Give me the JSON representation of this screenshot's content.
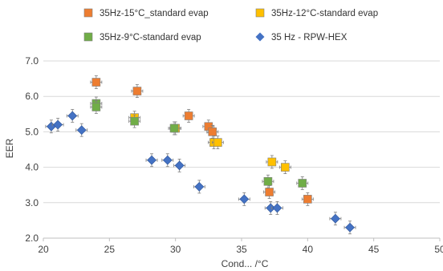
{
  "chart_data": {
    "type": "scatter",
    "title": "",
    "xlabel": "Cond... /°C",
    "ylabel": "EER",
    "xlim": [
      20,
      50
    ],
    "ylim": [
      2.0,
      7.0
    ],
    "x_ticks": [
      "20",
      "25",
      "30",
      "35",
      "40",
      "45",
      "50"
    ],
    "y_ticks": [
      "2.0",
      "3.0",
      "4.0",
      "5.0",
      "6.0",
      "7.0"
    ],
    "grid": "horizontal",
    "legend_position": "top",
    "series": [
      {
        "name": "35Hz-15°C_standard evap",
        "color": "#ED7D31",
        "marker": "square",
        "points": [
          {
            "x": 24.0,
            "y": 6.4
          },
          {
            "x": 27.1,
            "y": 6.15
          },
          {
            "x": 31.0,
            "y": 5.45
          },
          {
            "x": 32.5,
            "y": 5.15
          },
          {
            "x": 32.8,
            "y": 5.0
          },
          {
            "x": 37.1,
            "y": 3.3
          },
          {
            "x": 40.0,
            "y": 3.1
          }
        ]
      },
      {
        "name": "35Hz-12°C-standard evap",
        "color": "#FFC000",
        "marker": "square",
        "points": [
          {
            "x": 26.9,
            "y": 5.4
          },
          {
            "x": 30.0,
            "y": 5.1
          },
          {
            "x": 32.9,
            "y": 4.7
          },
          {
            "x": 33.2,
            "y": 4.7
          },
          {
            "x": 37.3,
            "y": 4.15
          },
          {
            "x": 38.3,
            "y": 4.0
          }
        ]
      },
      {
        "name": "35Hz-9°C-standard evap",
        "color": "#70AD47",
        "marker": "square",
        "points": [
          {
            "x": 24.0,
            "y": 5.8
          },
          {
            "x": 24.0,
            "y": 5.7
          },
          {
            "x": 26.9,
            "y": 5.3
          },
          {
            "x": 29.9,
            "y": 5.1
          },
          {
            "x": 37.0,
            "y": 3.6
          },
          {
            "x": 39.6,
            "y": 3.55
          }
        ]
      },
      {
        "name": "35 Hz - RPW-HEX",
        "color": "#4472C4",
        "marker": "diamond",
        "points": [
          {
            "x": 20.6,
            "y": 5.15
          },
          {
            "x": 21.1,
            "y": 5.2
          },
          {
            "x": 22.2,
            "y": 5.45
          },
          {
            "x": 22.9,
            "y": 5.05
          },
          {
            "x": 28.2,
            "y": 4.2
          },
          {
            "x": 29.4,
            "y": 4.2
          },
          {
            "x": 30.3,
            "y": 4.05
          },
          {
            "x": 31.8,
            "y": 3.45
          },
          {
            "x": 35.2,
            "y": 3.1
          },
          {
            "x": 37.2,
            "y": 2.85
          },
          {
            "x": 37.7,
            "y": 2.85
          },
          {
            "x": 42.1,
            "y": 2.55
          },
          {
            "x": 43.2,
            "y": 2.3
          }
        ]
      }
    ]
  }
}
